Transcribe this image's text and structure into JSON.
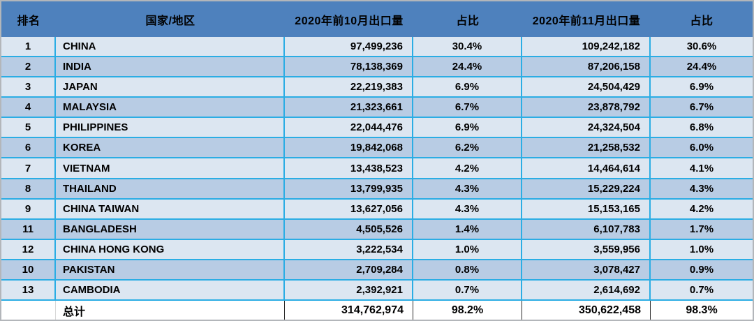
{
  "colors": {
    "header_bg": "#4E81BD",
    "row_light": "#DCE6F1",
    "row_dark": "#B8CCE4",
    "grid_border": "#2BADE4",
    "outer_border": "#B3B6BA",
    "total_bg": "#FFFFFF",
    "text": "#000000"
  },
  "table": {
    "columns": [
      {
        "label": "排名",
        "align": "center"
      },
      {
        "label": "国家/地区",
        "align": "left"
      },
      {
        "label": "2020年前10月出口量",
        "align": "right"
      },
      {
        "label": "占比",
        "align": "center"
      },
      {
        "label": "2020年前11月出口量",
        "align": "right"
      },
      {
        "label": "占比",
        "align": "center"
      }
    ],
    "rows": [
      [
        "1",
        "CHINA",
        "97,499,236",
        "30.4%",
        "109,242,182",
        "30.6%"
      ],
      [
        "2",
        "INDIA",
        "78,138,369",
        "24.4%",
        "87,206,158",
        "24.4%"
      ],
      [
        "3",
        "JAPAN",
        "22,219,383",
        "6.9%",
        "24,504,429",
        "6.9%"
      ],
      [
        "4",
        "MALAYSIA",
        "21,323,661",
        "6.7%",
        "23,878,792",
        "6.7%"
      ],
      [
        "5",
        "PHILIPPINES",
        "22,044,476",
        "6.9%",
        "24,324,504",
        "6.8%"
      ],
      [
        "6",
        "KOREA",
        "19,842,068",
        "6.2%",
        "21,258,532",
        "6.0%"
      ],
      [
        "7",
        "VIETNAM",
        "13,438,523",
        "4.2%",
        "14,464,614",
        "4.1%"
      ],
      [
        "8",
        "THAILAND",
        "13,799,935",
        "4.3%",
        "15,229,224",
        "4.3%"
      ],
      [
        "9",
        "CHINA TAIWAN",
        "13,627,056",
        "4.3%",
        "15,153,165",
        "4.2%"
      ],
      [
        "11",
        "BANGLADESH",
        "4,505,526",
        "1.4%",
        "6,107,783",
        "1.7%"
      ],
      [
        "12",
        "CHINA HONG KONG",
        "3,222,534",
        "1.0%",
        "3,559,956",
        "1.0%"
      ],
      [
        "10",
        "PAKISTAN",
        "2,709,284",
        "0.8%",
        "3,078,427",
        "0.9%"
      ],
      [
        "13",
        "CAMBODIA",
        "2,392,921",
        "0.7%",
        "2,614,692",
        "0.7%"
      ]
    ],
    "total": [
      "",
      "总计",
      "314,762,974",
      "98.2%",
      "350,622,458",
      "98.3%"
    ]
  },
  "chart_data": {
    "type": "table",
    "title": "",
    "columns": [
      "排名",
      "国家/地区",
      "2020年前10月出口量",
      "占比",
      "2020年前11月出口量",
      "占比"
    ],
    "rows": [
      {
        "rank": 1,
        "country": "CHINA",
        "export_first10m_2020": 97499236,
        "share_first10m": 30.4,
        "export_first11m_2020": 109242182,
        "share_first11m": 30.6
      },
      {
        "rank": 2,
        "country": "INDIA",
        "export_first10m_2020": 78138369,
        "share_first10m": 24.4,
        "export_first11m_2020": 87206158,
        "share_first11m": 24.4
      },
      {
        "rank": 3,
        "country": "JAPAN",
        "export_first10m_2020": 22219383,
        "share_first10m": 6.9,
        "export_first11m_2020": 24504429,
        "share_first11m": 6.9
      },
      {
        "rank": 4,
        "country": "MALAYSIA",
        "export_first10m_2020": 21323661,
        "share_first10m": 6.7,
        "export_first11m_2020": 23878792,
        "share_first11m": 6.7
      },
      {
        "rank": 5,
        "country": "PHILIPPINES",
        "export_first10m_2020": 22044476,
        "share_first10m": 6.9,
        "export_first11m_2020": 24324504,
        "share_first11m": 6.8
      },
      {
        "rank": 6,
        "country": "KOREA",
        "export_first10m_2020": 19842068,
        "share_first10m": 6.2,
        "export_first11m_2020": 21258532,
        "share_first11m": 6.0
      },
      {
        "rank": 7,
        "country": "VIETNAM",
        "export_first10m_2020": 13438523,
        "share_first10m": 4.2,
        "export_first11m_2020": 14464614,
        "share_first11m": 4.1
      },
      {
        "rank": 8,
        "country": "THAILAND",
        "export_first10m_2020": 13799935,
        "share_first10m": 4.3,
        "export_first11m_2020": 15229224,
        "share_first11m": 4.3
      },
      {
        "rank": 9,
        "country": "CHINA TAIWAN",
        "export_first10m_2020": 13627056,
        "share_first10m": 4.3,
        "export_first11m_2020": 15153165,
        "share_first11m": 4.2
      },
      {
        "rank": 11,
        "country": "BANGLADESH",
        "export_first10m_2020": 4505526,
        "share_first10m": 1.4,
        "export_first11m_2020": 6107783,
        "share_first11m": 1.7
      },
      {
        "rank": 12,
        "country": "CHINA HONG KONG",
        "export_first10m_2020": 3222534,
        "share_first10m": 1.0,
        "export_first11m_2020": 3559956,
        "share_first11m": 1.0
      },
      {
        "rank": 10,
        "country": "PAKISTAN",
        "export_first10m_2020": 2709284,
        "share_first10m": 0.8,
        "export_first11m_2020": 3078427,
        "share_first11m": 0.9
      },
      {
        "rank": 13,
        "country": "CAMBODIA",
        "export_first10m_2020": 2392921,
        "share_first10m": 0.7,
        "export_first11m_2020": 2614692,
        "share_first11m": 0.7
      }
    ],
    "total_row": {
      "label": "总计",
      "export_first10m_2020": 314762974,
      "share_first10m": 98.2,
      "export_first11m_2020": 350622458,
      "share_first11m": 98.3
    }
  }
}
